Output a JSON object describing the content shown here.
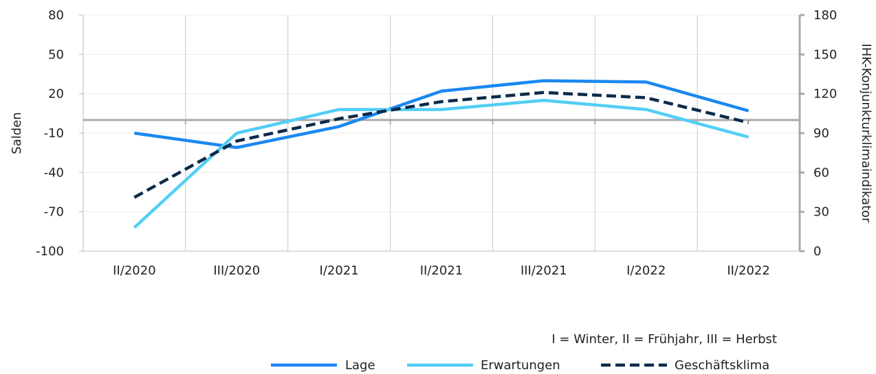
{
  "chart_data": {
    "type": "line",
    "categories": [
      "II/2020",
      "III/2020",
      "I/2021",
      "II/2021",
      "III/2021",
      "I/2022",
      "II/2022"
    ],
    "y_left": {
      "label": "Salden",
      "min": -100,
      "max": 80,
      "ticks": [
        80,
        50,
        20,
        -10,
        -40,
        -70,
        -100
      ],
      "tick_labels": [
        "80",
        "50",
        "20",
        "-10",
        "-40",
        "-70",
        "-100"
      ]
    },
    "y_right": {
      "label": "IHK-Konjunkturklimaindikator",
      "min": 0,
      "max": 180,
      "ticks": [
        180,
        150,
        120,
        90,
        60,
        30,
        0
      ],
      "tick_labels": [
        "180",
        "150",
        "120",
        "90",
        "60",
        "30",
        "0"
      ]
    },
    "reference_line": {
      "axis": "right",
      "value": 100
    },
    "series": [
      {
        "name": "Lage",
        "axis": "left",
        "color": "#1a87f0",
        "dash": "solid",
        "values": [
          -10,
          -21,
          -5,
          22,
          30,
          29,
          7
        ]
      },
      {
        "name": "Erwartungen",
        "axis": "left",
        "color": "#52cef5",
        "dash": "solid",
        "values": [
          -82,
          -10,
          8,
          8,
          15,
          8,
          -13
        ]
      },
      {
        "name": "Geschäftsklima",
        "axis": "right",
        "color": "#0d2a4a",
        "dash": "dashed",
        "values": [
          41,
          84,
          101,
          114,
          121,
          117,
          98
        ]
      }
    ],
    "note": "I = Winter, II = Frühjahr, III = Herbst",
    "legend_position": "bottom-right",
    "grid": {
      "vertical": true,
      "horizontal": true
    }
  }
}
